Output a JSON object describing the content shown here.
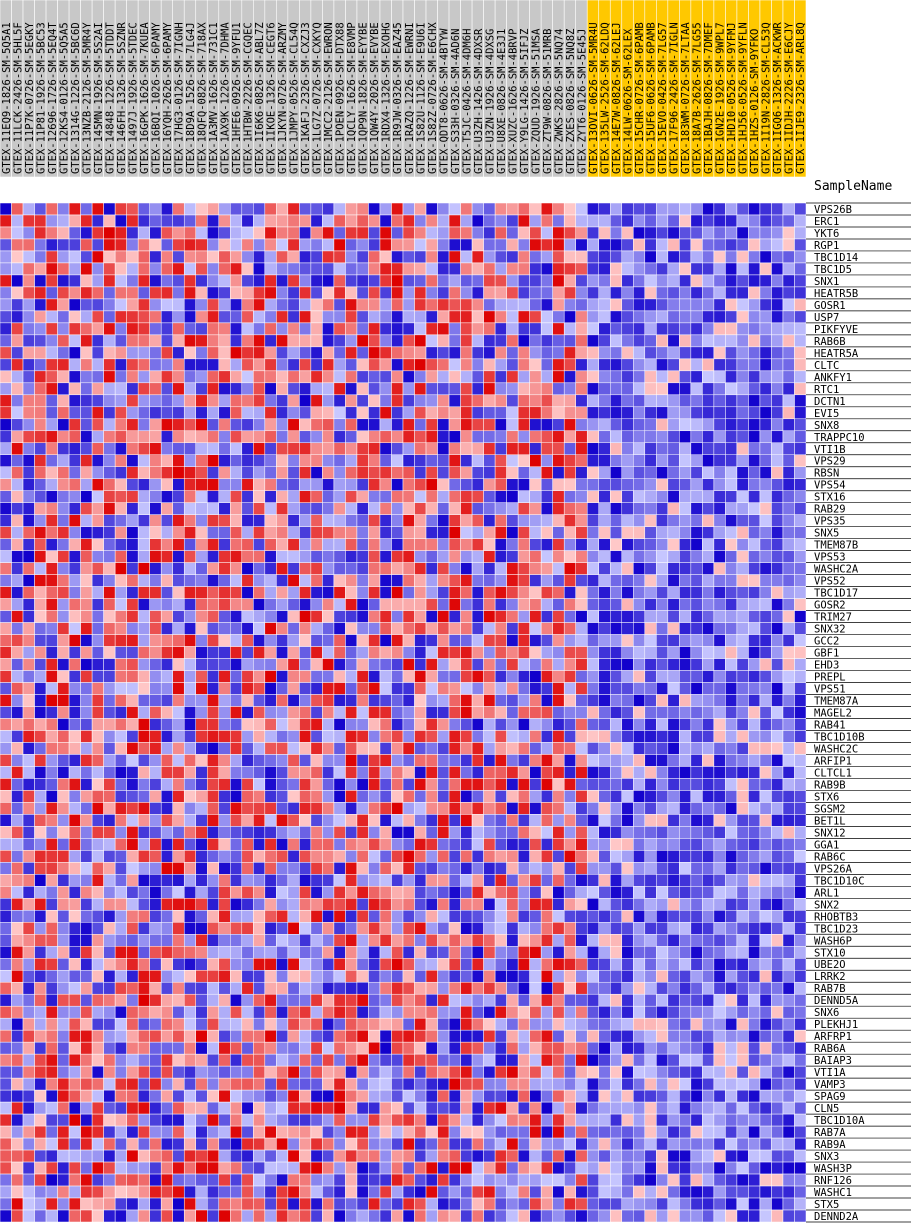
{
  "chart_data": {
    "type": "heatmap",
    "corner_label": "SampleName",
    "color_scale": {
      "low": "#1100cc",
      "mid_low": "#c8c8ff",
      "mid_high": "#ffc8c8",
      "high": "#dd0000",
      "header_default": "#c8c8c8",
      "header_highlight": "#ffc800"
    },
    "samples": [
      "GTEX-11EQ9-1826-SM-5Q5A1",
      "GTEX-11LCK-2426-SM-5HL5F",
      "GTEX-11P7K-0726-SM-5EGKY",
      "GTEX-11P81-1926-SM-5BC53",
      "GTEX-12696-1726-SM-5EQ4T",
      "GTEX-12KS4-0126-SM-5Q5A5",
      "GTEX-1314G-1226-SM-5BC6D",
      "GTEX-13NZB-2126-SM-5MR4Y",
      "GTEX-145MN-1926-SM-5S2AI",
      "GTEX-14848-1226-SM-5TDDT",
      "GTEX-146FH-1326-SM-5SZNR",
      "GTEX-1497J-1926-SM-5TDEC",
      "GTEX-16GPK-1626-SM-7KUEA",
      "GTEX-16BQI-1026-SM-6PAMY",
      "GTEX-16YQH-2626-SM-6PAMY",
      "GTEX-17HG3-0126-SM-7IGNH",
      "GTEX-18D9A-1526-SM-7LG4J",
      "GTEX-18QFQ-0826-SM-718AX",
      "GTEX-1A3MV-1626-SM-731C1",
      "GTEX-1AX9K-1226-SM-7DHMA",
      "GTEX-1HFE6-0926-SM-9YFU1",
      "GTEX-1HTBW-2226-SM-CGQEC",
      "GTEX-1I6K6-0826-SM-ABL7Z",
      "GTEX-1IKOE-1326-SM-CEGT6",
      "GTEX-1JKYN-0726-SM-ARZMY",
      "GTEX-1JMPY-0526-SM-CL54Q",
      "GTEX-1KAFJ-2326-SM-CXZJ3",
      "GTEX-1LG7Z-0726-SM-CXKYQ",
      "GTEX-1MCC2-2126-SM-EWRON",
      "GTEX-1POEN-0926-SM-DTX88",
      "GTEX-1QCLY-1626-SM-E8VMP",
      "GTEX-1QP9N-1826-SM-EYYBE",
      "GTEX-1QW4Y-2026-SM-EVYBE",
      "GTEX-1RDX4-1326-SM-EXOHG",
      "GTEX-1R9JW-0326-SM-EAZ45",
      "GTEX-1RAZQ-1226-SM-EWRNI",
      "GTEX-1S82U-1126-SM-E9U6I",
      "GTEX-1S82Z-0726-SM-E6CHX",
      "GTEX-QDT8-0626-SM-4BTYW",
      "GTEX-S33H-0326-SM-4AD6N",
      "GTEX-T5JC-0426-SM-4DM6H",
      "GTEX-U3ZH-1426-SM-4DXSR",
      "GTEX-U3ZN-1926-SM-4DXSG",
      "GTEX-U8XE-0826-SM-4E3J1",
      "GTEX-XUZC-1626-SM-4BRVP",
      "GTEX-Y9LG-1426-SM-5IFJZ",
      "GTEX-ZQUD-1926-SM-51MSA",
      "GTEX-ZT9W-0826-SM-51MRB",
      "GTEX-ZWKS-2826-SM-5NQ74",
      "GTEX-ZXES-0826-SM-5NQ8Z",
      "GTEX-ZYT6-0126-SM-5E45J",
      "GTEX-13OVI-0626-SM-5MR4U",
      "GTEX-135LW-2526-SM-62LDQ",
      "GTEX-14E7W-0826-SM-62LEJ",
      "GTEX-14LW-0626-SM-62LEX",
      "GTEX-15CHR-0726-SM-6PAMB",
      "GTEX-15UF6-0626-SM-6PAMB",
      "GTEX-15EVO-0426-SM-7LG57",
      "GTEX-17F96-2426-SM-7IGLN",
      "GTEX-183WM-0726-SM-7LTAA",
      "GTEX-18A7B-2626-SM-7LG55",
      "GTEX-1BAJH-0826-SM-7DMEF",
      "GTEX-1GN2E-1926-SM-9WPL7",
      "GTEX-1HD10-0526-SM-9YFMJ",
      "GTEX-1HJ56-0526-SM-9YFLN",
      "GTEX-1HZS-0126-SM-9YFKO",
      "GTEX-1I19N-2826-SM-CL53Q",
      "GTEX-1IGQ6-1326-SM-ACKWR",
      "GTEX-1IDJH-2226-SM-E6CJY",
      "GTEX-1IJE9-2326-SM-ARL8Q"
    ],
    "highlight_start_index": 51,
    "genes": [
      "VPS26B",
      "ERC1",
      "YKT6",
      "RGP1",
      "TBC1D14",
      "TBC1D5",
      "SNX1",
      "HEATR5B",
      "GOSR1",
      "USP7",
      "PIKFYVE",
      "RAB6B",
      "HEATR5A",
      "CLTC",
      "ANKFY1",
      "RTC1",
      "DCTN1",
      "EVI5",
      "SNX8",
      "TRAPPC10",
      "VTI1B",
      "VPS29",
      "RBSN",
      "VPS54",
      "STX16",
      "RAB29",
      "VPS35",
      "SNX5",
      "TMEM87B",
      "VPS53",
      "WASHC2A",
      "VPS52",
      "TBC1D17",
      "GOSR2",
      "TRIM27",
      "SNX32",
      "GCC2",
      "GBF1",
      "EHD3",
      "PREPL",
      "VPS51",
      "TMEM87A",
      "MAGEL2",
      "RAB41",
      "TBC1D10B",
      "WASHC2C",
      "ARFIP1",
      "CLTCL1",
      "RAB9B",
      "STX6",
      "SGSM2",
      "BET1L",
      "SNX12",
      "GGA1",
      "RAB6C",
      "VPS26A",
      "TBC1D10C",
      "ARL1",
      "SNX2",
      "RHOBTB3",
      "TBC1D23",
      "WASH6P",
      "STX10",
      "UBE2O",
      "LRRK2",
      "RAB7B",
      "DENND5A",
      "SNX6",
      "PLEKHJ1",
      "ARFRP1",
      "RAB6A",
      "BAIAP3",
      "VTI1A",
      "VAMP3",
      "SPAG9",
      "CLN5",
      "TBC1D10A",
      "RAB7A",
      "RAB9A",
      "SNX3",
      "WASH3P",
      "RNF126",
      "WASHC1",
      "STX5",
      "DENND2A"
    ]
  }
}
